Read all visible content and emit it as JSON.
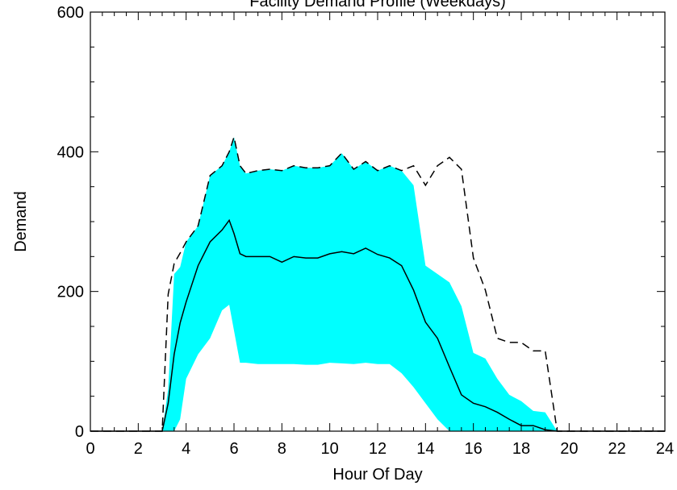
{
  "chart_data": {
    "type": "line",
    "title": "Facility Demand Profile (Weekdays)",
    "x_label": "Hour Of Day",
    "y_label": "Demand",
    "x": [
      0,
      3,
      3.25,
      3.5,
      3.75,
      4,
      4.5,
      5,
      5.5,
      5.8,
      6,
      6.25,
      6.5,
      7,
      7.5,
      8,
      8.5,
      9,
      9.5,
      10,
      10.5,
      11,
      11.5,
      12,
      12.5,
      13,
      13.5,
      14,
      14.5,
      15,
      15.5,
      16,
      16.5,
      17,
      17.5,
      18,
      18.5,
      19,
      19.5,
      20,
      24
    ],
    "band": {
      "color": "#00ffff",
      "upper": [
        0,
        0,
        60,
        225,
        235,
        271,
        294,
        366,
        380,
        400,
        421,
        380,
        369,
        373,
        375,
        373,
        380,
        377,
        377,
        380,
        398,
        375,
        386,
        373,
        380,
        373,
        352,
        237,
        225,
        213,
        179,
        112,
        104,
        75,
        52,
        43,
        29,
        27,
        0,
        0,
        0
      ],
      "lower": [
        0,
        0,
        0,
        0,
        17,
        75,
        110,
        133,
        173,
        181,
        144,
        98,
        98,
        96,
        96,
        96,
        96,
        95,
        95,
        98,
        97,
        96,
        98,
        96,
        96,
        83,
        63,
        40,
        17,
        0,
        0,
        0,
        0,
        0,
        0,
        0,
        0,
        0,
        0,
        0,
        0
      ]
    },
    "series": [
      {
        "color": "#000000",
        "style": "solid",
        "values": [
          0,
          0,
          40,
          110,
          155,
          185,
          237,
          271,
          288,
          302,
          283,
          254,
          250,
          250,
          250,
          242,
          250,
          248,
          248,
          254,
          257,
          254,
          262,
          253,
          248,
          237,
          202,
          156,
          133,
          92,
          52,
          40,
          35,
          27,
          17,
          8,
          8,
          2,
          0,
          0,
          0
        ]
      },
      {
        "color": "#000000",
        "style": "dashed",
        "values": [
          0,
          0,
          196,
          240,
          255,
          271,
          294,
          366,
          380,
          400,
          421,
          380,
          369,
          373,
          375,
          373,
          380,
          377,
          377,
          380,
          398,
          375,
          386,
          373,
          380,
          373,
          380,
          352,
          380,
          392,
          375,
          248,
          202,
          133,
          127,
          127,
          115,
          115,
          0,
          0,
          0
        ]
      }
    ],
    "xlim": [
      0,
      24
    ],
    "xticks": [
      0,
      2,
      4,
      6,
      8,
      10,
      12,
      14,
      16,
      18,
      20,
      22,
      24
    ],
    "ylim": [
      0,
      600
    ],
    "yticks": [
      0,
      200,
      400,
      600
    ]
  }
}
